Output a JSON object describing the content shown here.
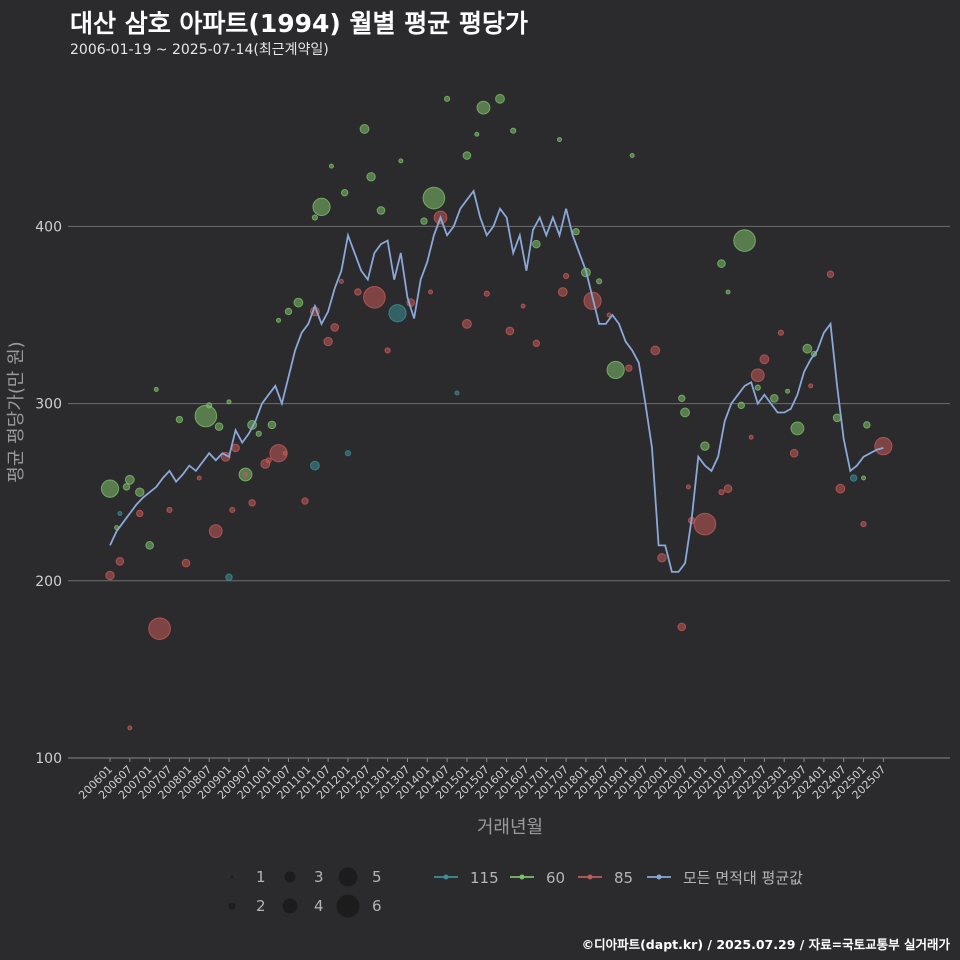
{
  "title": "대산 삼호 아파트(1994) 월별 평균 평당가",
  "subtitle": "2006-01-19 ~ 2025-07-14(최근계약일)",
  "caption": "©디아파트(dapt.kr) / 2025.07.29 / 자료=국토교통부 실거래가",
  "colors": {
    "background": "#2b2a2d",
    "grid": "#6e6e6e",
    "s115": "#3a8f96",
    "s60": "#7dbf6a",
    "s85": "#c25a58",
    "avg": "#8aa8d8"
  },
  "chart_data": {
    "type": "scatter",
    "xlabel": "거래년월",
    "ylabel": "평균 평당가(만 원)",
    "ylim": [
      100,
      460
    ],
    "yticks": [
      100,
      200,
      300,
      400
    ],
    "xticks": [
      "200601",
      "200607",
      "200701",
      "200707",
      "200801",
      "200807",
      "200901",
      "200907",
      "201001",
      "201007",
      "201101",
      "201107",
      "201201",
      "201207",
      "201301",
      "201307",
      "201401",
      "201407",
      "201501",
      "201507",
      "201601",
      "201607",
      "201701",
      "201707",
      "201801",
      "201807",
      "201901",
      "201907",
      "202001",
      "202007",
      "202101",
      "202107",
      "202201",
      "202207",
      "202301",
      "202307",
      "202401",
      "202407",
      "202501",
      "202507"
    ],
    "grid": "horizontal",
    "size_legend": {
      "labels": [
        "1",
        "2",
        "3",
        "4",
        "5",
        "6"
      ],
      "values": [
        1,
        2,
        3,
        4,
        5,
        6
      ]
    },
    "series": [
      {
        "name": "115",
        "points": [
          [
            "2006-04",
            238
          ],
          [
            "2009-01",
            202
          ],
          [
            "2011-03",
            265
          ],
          [
            "2012-01",
            272
          ],
          [
            "2013-04",
            351
          ],
          [
            "2014-10",
            306
          ],
          [
            "2024-10",
            258
          ]
        ]
      },
      {
        "name": "60",
        "points": [
          [
            "2006-01",
            252
          ],
          [
            "2006-03",
            230
          ],
          [
            "2006-06",
            253
          ],
          [
            "2006-07",
            257
          ],
          [
            "2006-10",
            250
          ],
          [
            "2007-01",
            220
          ],
          [
            "2007-03",
            308
          ],
          [
            "2007-10",
            291
          ],
          [
            "2008-06",
            293
          ],
          [
            "2008-07",
            299
          ],
          [
            "2008-10",
            287
          ],
          [
            "2009-01",
            301
          ],
          [
            "2009-06",
            260
          ],
          [
            "2009-08",
            288
          ],
          [
            "2009-10",
            283
          ],
          [
            "2010-02",
            288
          ],
          [
            "2010-04",
            347
          ],
          [
            "2010-07",
            352
          ],
          [
            "2010-10",
            357
          ],
          [
            "2011-03",
            405
          ],
          [
            "2011-05",
            411
          ],
          [
            "2011-08",
            434
          ],
          [
            "2011-12",
            419
          ],
          [
            "2012-06",
            455
          ],
          [
            "2012-08",
            428
          ],
          [
            "2012-11",
            409
          ],
          [
            "2013-05",
            437
          ],
          [
            "2013-12",
            403
          ],
          [
            "2014-03",
            416
          ],
          [
            "2014-07",
            472
          ],
          [
            "2015-01",
            440
          ],
          [
            "2015-04",
            452
          ],
          [
            "2015-06",
            467
          ],
          [
            "2015-11",
            472
          ],
          [
            "2016-03",
            454
          ],
          [
            "2016-10",
            390
          ],
          [
            "2017-05",
            449
          ],
          [
            "2017-10",
            397
          ],
          [
            "2018-01",
            374
          ],
          [
            "2018-05",
            369
          ],
          [
            "2018-10",
            319
          ],
          [
            "2019-03",
            440
          ],
          [
            "2020-06",
            303
          ],
          [
            "2020-07",
            295
          ],
          [
            "2021-01",
            276
          ],
          [
            "2021-06",
            379
          ],
          [
            "2021-08",
            363
          ],
          [
            "2021-12",
            299
          ],
          [
            "2022-01",
            392
          ],
          [
            "2022-05",
            309
          ],
          [
            "2022-10",
            303
          ],
          [
            "2023-02",
            307
          ],
          [
            "2023-05",
            286
          ],
          [
            "2023-08",
            331
          ],
          [
            "2023-10",
            328
          ],
          [
            "2024-05",
            292
          ],
          [
            "2025-01",
            258
          ],
          [
            "2025-02",
            288
          ]
        ]
      },
      {
        "name": "85",
        "points": [
          [
            "2006-01",
            203
          ],
          [
            "2006-04",
            211
          ],
          [
            "2006-07",
            117
          ],
          [
            "2006-10",
            238
          ],
          [
            "2007-04",
            173
          ],
          [
            "2007-07",
            240
          ],
          [
            "2007-12",
            210
          ],
          [
            "2008-04",
            258
          ],
          [
            "2008-09",
            228
          ],
          [
            "2008-12",
            270
          ],
          [
            "2009-02",
            240
          ],
          [
            "2009-03",
            275
          ],
          [
            "2009-06",
            260
          ],
          [
            "2009-08",
            244
          ],
          [
            "2009-12",
            266
          ],
          [
            "2010-01",
            268
          ],
          [
            "2010-04",
            272
          ],
          [
            "2010-06",
            272
          ],
          [
            "2010-12",
            245
          ],
          [
            "2011-03",
            352
          ],
          [
            "2011-07",
            335
          ],
          [
            "2011-09",
            343
          ],
          [
            "2011-11",
            369
          ],
          [
            "2012-04",
            363
          ],
          [
            "2012-09",
            360
          ],
          [
            "2013-01",
            330
          ],
          [
            "2013-08",
            357
          ],
          [
            "2014-02",
            363
          ],
          [
            "2014-05",
            405
          ],
          [
            "2015-01",
            345
          ],
          [
            "2015-07",
            362
          ],
          [
            "2016-02",
            341
          ],
          [
            "2016-06",
            355
          ],
          [
            "2016-10",
            334
          ],
          [
            "2017-06",
            363
          ],
          [
            "2017-07",
            372
          ],
          [
            "2018-03",
            358
          ],
          [
            "2018-08",
            350
          ],
          [
            "2019-02",
            320
          ],
          [
            "2019-10",
            330
          ],
          [
            "2019-12",
            213
          ],
          [
            "2020-06",
            174
          ],
          [
            "2020-08",
            253
          ],
          [
            "2020-09",
            234
          ],
          [
            "2021-01",
            232
          ],
          [
            "2021-06",
            250
          ],
          [
            "2021-08",
            252
          ],
          [
            "2022-03",
            281
          ],
          [
            "2022-05",
            316
          ],
          [
            "2022-07",
            325
          ],
          [
            "2022-12",
            340
          ],
          [
            "2023-04",
            272
          ],
          [
            "2023-09",
            310
          ],
          [
            "2024-03",
            373
          ],
          [
            "2024-06",
            252
          ],
          [
            "2025-01",
            232
          ],
          [
            "2025-07",
            276
          ]
        ]
      }
    ],
    "average_series": {
      "name": "모든 면적대 평균값",
      "x": [
        "2006-01",
        "2006-03",
        "2006-05",
        "2006-07",
        "2006-09",
        "2006-11",
        "2007-01",
        "2007-03",
        "2007-05",
        "2007-07",
        "2007-09",
        "2007-11",
        "2008-01",
        "2008-03",
        "2008-05",
        "2008-07",
        "2008-09",
        "2008-11",
        "2009-01",
        "2009-03",
        "2009-05",
        "2009-07",
        "2009-09",
        "2009-11",
        "2010-01",
        "2010-03",
        "2010-05",
        "2010-07",
        "2010-09",
        "2010-11",
        "2011-01",
        "2011-03",
        "2011-05",
        "2011-07",
        "2011-09",
        "2011-11",
        "2012-01",
        "2012-03",
        "2012-05",
        "2012-07",
        "2012-09",
        "2012-11",
        "2013-01",
        "2013-03",
        "2013-05",
        "2013-07",
        "2013-09",
        "2013-11",
        "2014-01",
        "2014-03",
        "2014-05",
        "2014-07",
        "2014-09",
        "2014-11",
        "2015-01",
        "2015-03",
        "2015-05",
        "2015-07",
        "2015-09",
        "2015-11",
        "2016-01",
        "2016-03",
        "2016-05",
        "2016-07",
        "2016-09",
        "2016-11",
        "2017-01",
        "2017-03",
        "2017-05",
        "2017-07",
        "2017-09",
        "2017-11",
        "2018-01",
        "2018-03",
        "2018-05",
        "2018-07",
        "2018-09",
        "2018-11",
        "2019-01",
        "2019-03",
        "2019-05",
        "2019-07",
        "2019-09",
        "2019-11",
        "2020-01",
        "2020-03",
        "2020-05",
        "2020-07",
        "2020-09",
        "2020-11",
        "2021-01",
        "2021-03",
        "2021-05",
        "2021-07",
        "2021-09",
        "2021-11",
        "2022-01",
        "2022-03",
        "2022-05",
        "2022-07",
        "2022-09",
        "2022-11",
        "2023-01",
        "2023-03",
        "2023-05",
        "2023-07",
        "2023-09",
        "2023-11",
        "2024-01",
        "2024-03",
        "2024-05",
        "2024-07",
        "2024-09",
        "2024-11",
        "2025-01",
        "2025-03",
        "2025-05",
        "2025-07"
      ],
      "values": [
        220,
        228,
        233,
        238,
        243,
        247,
        250,
        253,
        258,
        262,
        256,
        260,
        265,
        262,
        267,
        272,
        268,
        272,
        270,
        285,
        278,
        283,
        290,
        300,
        305,
        310,
        300,
        315,
        330,
        340,
        345,
        355,
        345,
        352,
        365,
        375,
        395,
        385,
        375,
        370,
        385,
        390,
        392,
        370,
        385,
        360,
        348,
        370,
        380,
        395,
        405,
        395,
        400,
        410,
        415,
        420,
        405,
        395,
        400,
        410,
        405,
        385,
        395,
        375,
        398,
        405,
        395,
        405,
        395,
        410,
        395,
        385,
        375,
        360,
        345,
        345,
        350,
        345,
        335,
        330,
        323,
        300,
        275,
        220,
        220,
        205,
        205,
        210,
        235,
        270,
        265,
        262,
        270,
        290,
        300,
        305,
        310,
        312,
        300,
        305,
        300,
        295,
        295,
        297,
        305,
        318,
        325,
        330,
        340,
        345,
        310,
        280,
        262,
        265,
        270,
        272,
        274,
        275
      ]
    }
  }
}
